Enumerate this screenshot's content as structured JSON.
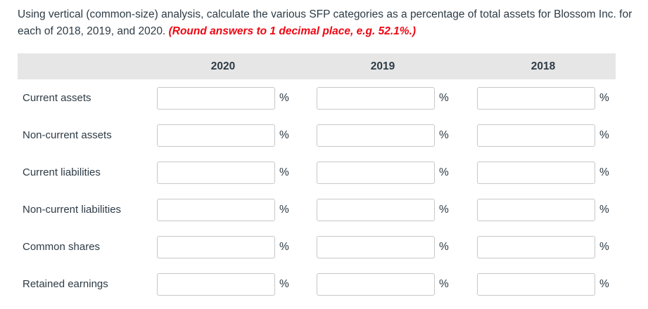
{
  "question": {
    "line1": "Using vertical (common-size) analysis, calculate the various SFP categories as a percentage of total assets for Blossom Inc. for",
    "line2": "each of 2018, 2019, and 2020. ",
    "rounding_note": "(Round answers to 1 decimal place, e.g. 52.1%.)"
  },
  "table": {
    "years": [
      "2020",
      "2019",
      "2018"
    ],
    "percent_symbol": "%",
    "rows": [
      {
        "label": "Current assets",
        "values": [
          "",
          "",
          ""
        ]
      },
      {
        "label": "Non-current assets",
        "values": [
          "",
          "",
          ""
        ]
      },
      {
        "label": "Current liabilities",
        "values": [
          "",
          "",
          ""
        ]
      },
      {
        "label": "Non-current liabilities",
        "values": [
          "",
          "",
          ""
        ]
      },
      {
        "label": "Common shares",
        "values": [
          "",
          "",
          ""
        ]
      },
      {
        "label": "Retained earnings",
        "values": [
          "",
          "",
          ""
        ]
      }
    ]
  },
  "colors": {
    "text": "#2d3b45",
    "rounding_note": "#ee0612",
    "header_background": "#e6e6e6",
    "input_border": "#c7c7c7"
  }
}
